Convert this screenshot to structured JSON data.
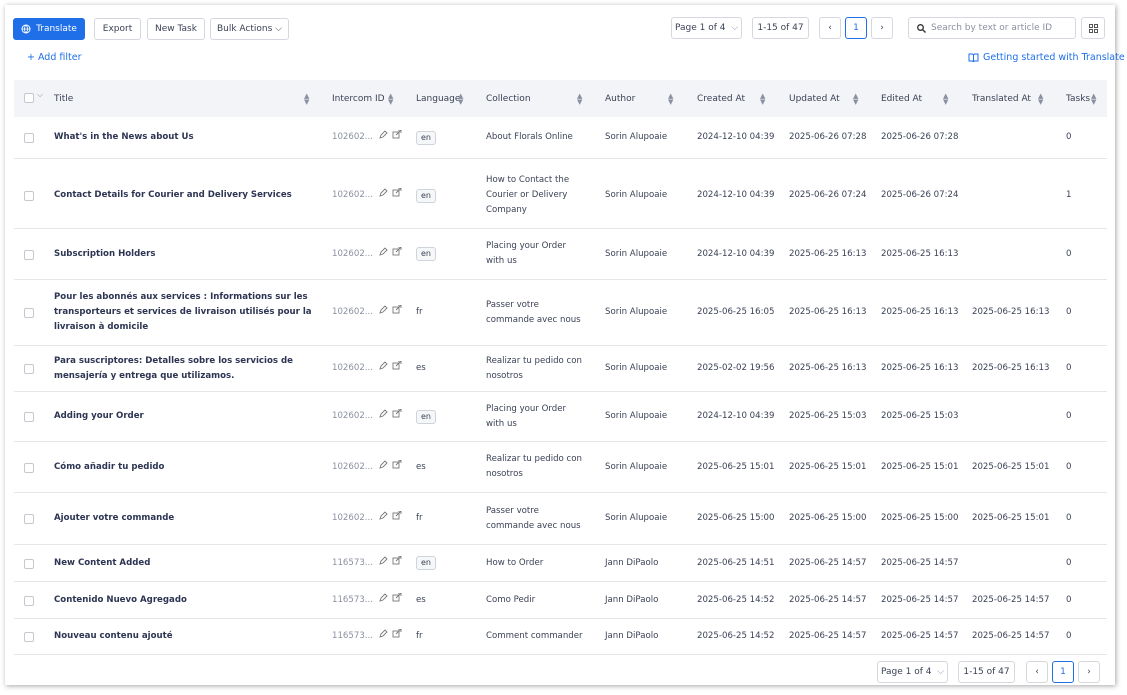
{
  "toolbar": {
    "buttons": [
      "Translate",
      "Export",
      "New Task",
      "Bulk Actions"
    ],
    "page_select": "Page 1 of 4",
    "range": "1-15 of 47",
    "current_page": "1",
    "search_placeholder": "Search by text or article ID"
  },
  "filter": {
    "add_filter": "+ Add filter",
    "help_link": "Getting started with Translate"
  },
  "table": {
    "columns": [
      "Title",
      "Intercom ID",
      "Language",
      "Collection",
      "Author",
      "Created At",
      "Updated At",
      "Edited At",
      "Translated At",
      "Tasks"
    ],
    "rows": [
      {
        "title": "What's in the News about Us",
        "id": "102602...",
        "language": "en",
        "language_badge": true,
        "collection": "About Florals Online",
        "author": "Sorin Alupoaie",
        "created": "2024-12-10 04:39",
        "updated": "2025-06-26 07:28",
        "edited": "2025-06-26 07:28",
        "translated": null,
        "tasks": 0
      },
      {
        "title": "Contact Details for Courier and Delivery Services",
        "id": "102602...",
        "language": "en",
        "language_badge": true,
        "collection": "How to Contact the Courier or Delivery Company",
        "author": "Sorin Alupoaie",
        "created": "2024-12-10 04:39",
        "updated": "2025-06-26 07:24",
        "edited": "2025-06-26 07:24",
        "translated": null,
        "tasks": 1
      },
      {
        "title": "Subscription Holders",
        "id": "102602...",
        "language": "en",
        "language_badge": true,
        "collection": "Placing your Order with us",
        "author": "Sorin Alupoaie",
        "created": "2024-12-10 04:39",
        "updated": "2025-06-25 16:13",
        "edited": "2025-06-25 16:13",
        "translated": null,
        "tasks": 0
      },
      {
        "title": "Pour les abonnés aux services : Informations sur les transporteurs et services de livraison utilisés pour la livraison à domicile",
        "id": "102602...",
        "language": "fr",
        "language_badge": false,
        "collection": "Passer votre commande avec nous",
        "author": "Sorin Alupoaie",
        "created": "2025-06-25 16:05",
        "updated": "2025-06-25 16:13",
        "edited": "2025-06-25 16:13",
        "translated": "2025-06-25 16:13",
        "tasks": 0
      },
      {
        "title": "Para suscriptores: Detalles sobre los servicios de mensajería y entrega que utilizamos.",
        "id": "102602...",
        "language": "es",
        "language_badge": false,
        "collection": "Realizar tu pedido con nosotros",
        "author": "Sorin Alupoaie",
        "created": "2025-02-02 19:56",
        "updated": "2025-06-25 16:13",
        "edited": "2025-06-25 16:13",
        "translated": "2025-06-25 16:13",
        "tasks": 0
      },
      {
        "title": "Adding your Order",
        "id": "102602...",
        "language": "en",
        "language_badge": true,
        "collection": "Placing your Order with us",
        "author": "Sorin Alupoaie",
        "created": "2024-12-10 04:39",
        "updated": "2025-06-25 15:03",
        "edited": "2025-06-25 15:03",
        "translated": null,
        "tasks": 0
      },
      {
        "title": "Cómo añadir tu pedido",
        "id": "102602...",
        "language": "es",
        "language_badge": false,
        "collection": "Realizar tu pedido con nosotros",
        "author": "Sorin Alupoaie",
        "created": "2025-06-25 15:01",
        "updated": "2025-06-25 15:01",
        "edited": "2025-06-25 15:01",
        "translated": "2025-06-25 15:01",
        "tasks": 0
      },
      {
        "title": "Ajouter votre commande",
        "id": "102602...",
        "language": "fr",
        "language_badge": false,
        "collection": "Passer votre commande avec nous",
        "author": "Sorin Alupoaie",
        "created": "2025-06-25 15:00",
        "updated": "2025-06-25 15:00",
        "edited": "2025-06-25 15:00",
        "translated": "2025-06-25 15:01",
        "tasks": 0
      },
      {
        "title": "New Content Added",
        "id": "116573...",
        "language": "en",
        "language_badge": true,
        "collection": "How to Order",
        "author": "Jann DiPaolo",
        "created": "2025-06-25 14:51",
        "updated": "2025-06-25 14:57",
        "edited": "2025-06-25 14:57",
        "translated": null,
        "tasks": 0
      },
      {
        "title": "Contenido Nuevo Agregado",
        "id": "116573...",
        "language": "es",
        "language_badge": false,
        "collection": "Como Pedir",
        "author": "Jann DiPaolo",
        "created": "2025-06-25 14:52",
        "updated": "2025-06-25 14:57",
        "edited": "2025-06-25 14:57",
        "translated": "2025-06-25 14:57",
        "tasks": 0
      },
      {
        "title": "Nouveau contenu ajouté",
        "id": "116573...",
        "language": "fr",
        "language_badge": false,
        "collection": "Comment commander",
        "author": "Jann DiPaolo",
        "created": "2025-06-25 14:52",
        "updated": "2025-06-25 14:57",
        "edited": "2025-06-25 14:57",
        "translated": "2025-06-25 14:57",
        "tasks": 0
      }
    ]
  }
}
